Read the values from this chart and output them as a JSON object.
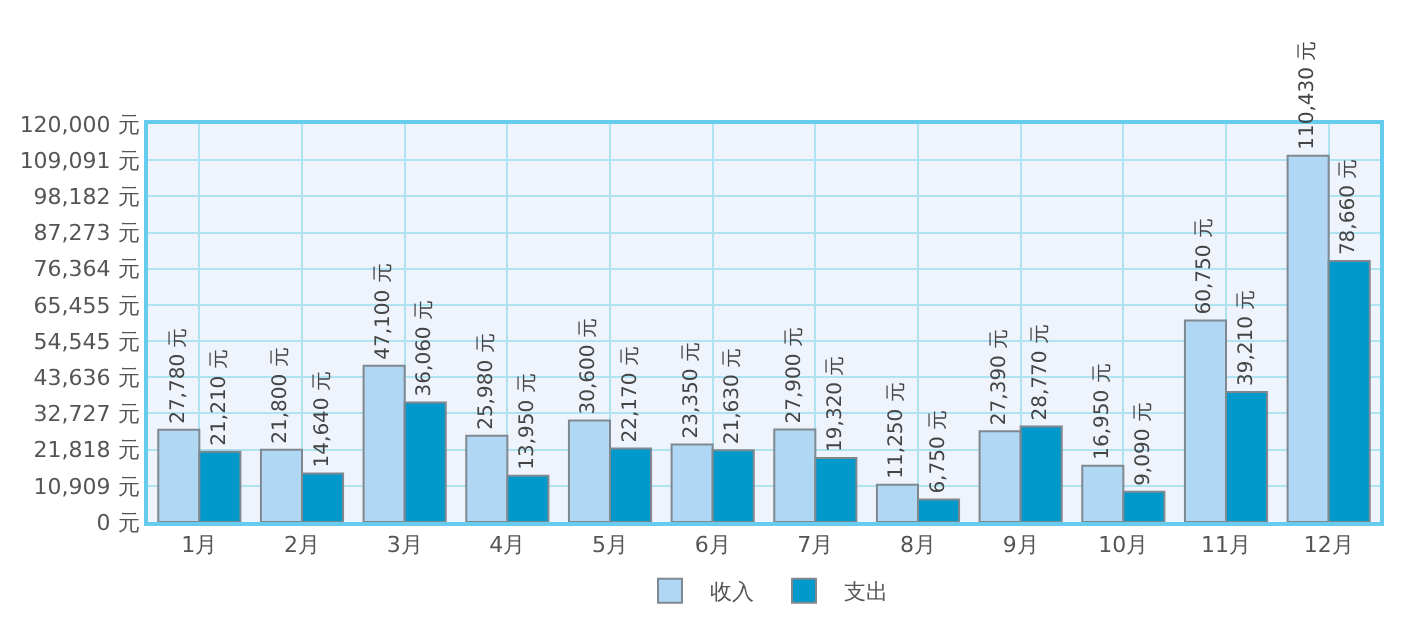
{
  "chart_data": {
    "type": "bar",
    "categories": [
      "1月",
      "2月",
      "3月",
      "4月",
      "5月",
      "6月",
      "7月",
      "8月",
      "9月",
      "10月",
      "11月",
      "12月"
    ],
    "series": [
      {
        "name": "收入",
        "color": "#b0d8f5",
        "values": [
          27780,
          21800,
          47100,
          25980,
          30600,
          23350,
          27900,
          11250,
          27390,
          16950,
          60750,
          110430
        ],
        "value_labels": [
          "27,780 元",
          "21,800 元",
          "47,100 元",
          "25,980 元",
          "30,600 元",
          "23,350 元",
          "27,900 元",
          "11,250 元",
          "27,390 元",
          "16,950 元",
          "60,750 元",
          "110,430 元"
        ]
      },
      {
        "name": "支出",
        "color": "#0099cc",
        "values": [
          21210,
          14640,
          36060,
          13950,
          22170,
          21630,
          19320,
          6750,
          28770,
          9090,
          39210,
          78660
        ],
        "value_labels": [
          "21,210 元",
          "14,640 元",
          "36,060 元",
          "13,950 元",
          "22,170 元",
          "21,630 元",
          "19,320 元",
          "6,750 元",
          "28,770 元",
          "9,090 元",
          "39,210 元",
          "78,660 元"
        ]
      }
    ],
    "ylim": [
      0,
      120000
    ],
    "yticks": [
      {
        "value": 0,
        "label": "0 元"
      },
      {
        "value": 10909,
        "label": "10,909 元"
      },
      {
        "value": 21818,
        "label": "21,818 元"
      },
      {
        "value": 32727,
        "label": "32,727 元"
      },
      {
        "value": 43636,
        "label": "43,636 元"
      },
      {
        "value": 54545,
        "label": "54,545 元"
      },
      {
        "value": 65455,
        "label": "65,455 元"
      },
      {
        "value": 76364,
        "label": "76,364 元"
      },
      {
        "value": 87273,
        "label": "87,273 元"
      },
      {
        "value": 98182,
        "label": "98,182 元"
      },
      {
        "value": 109091,
        "label": "109,091 元"
      },
      {
        "value": 120000,
        "label": "120,000 元"
      }
    ],
    "grid": true,
    "legend": "bottom"
  }
}
